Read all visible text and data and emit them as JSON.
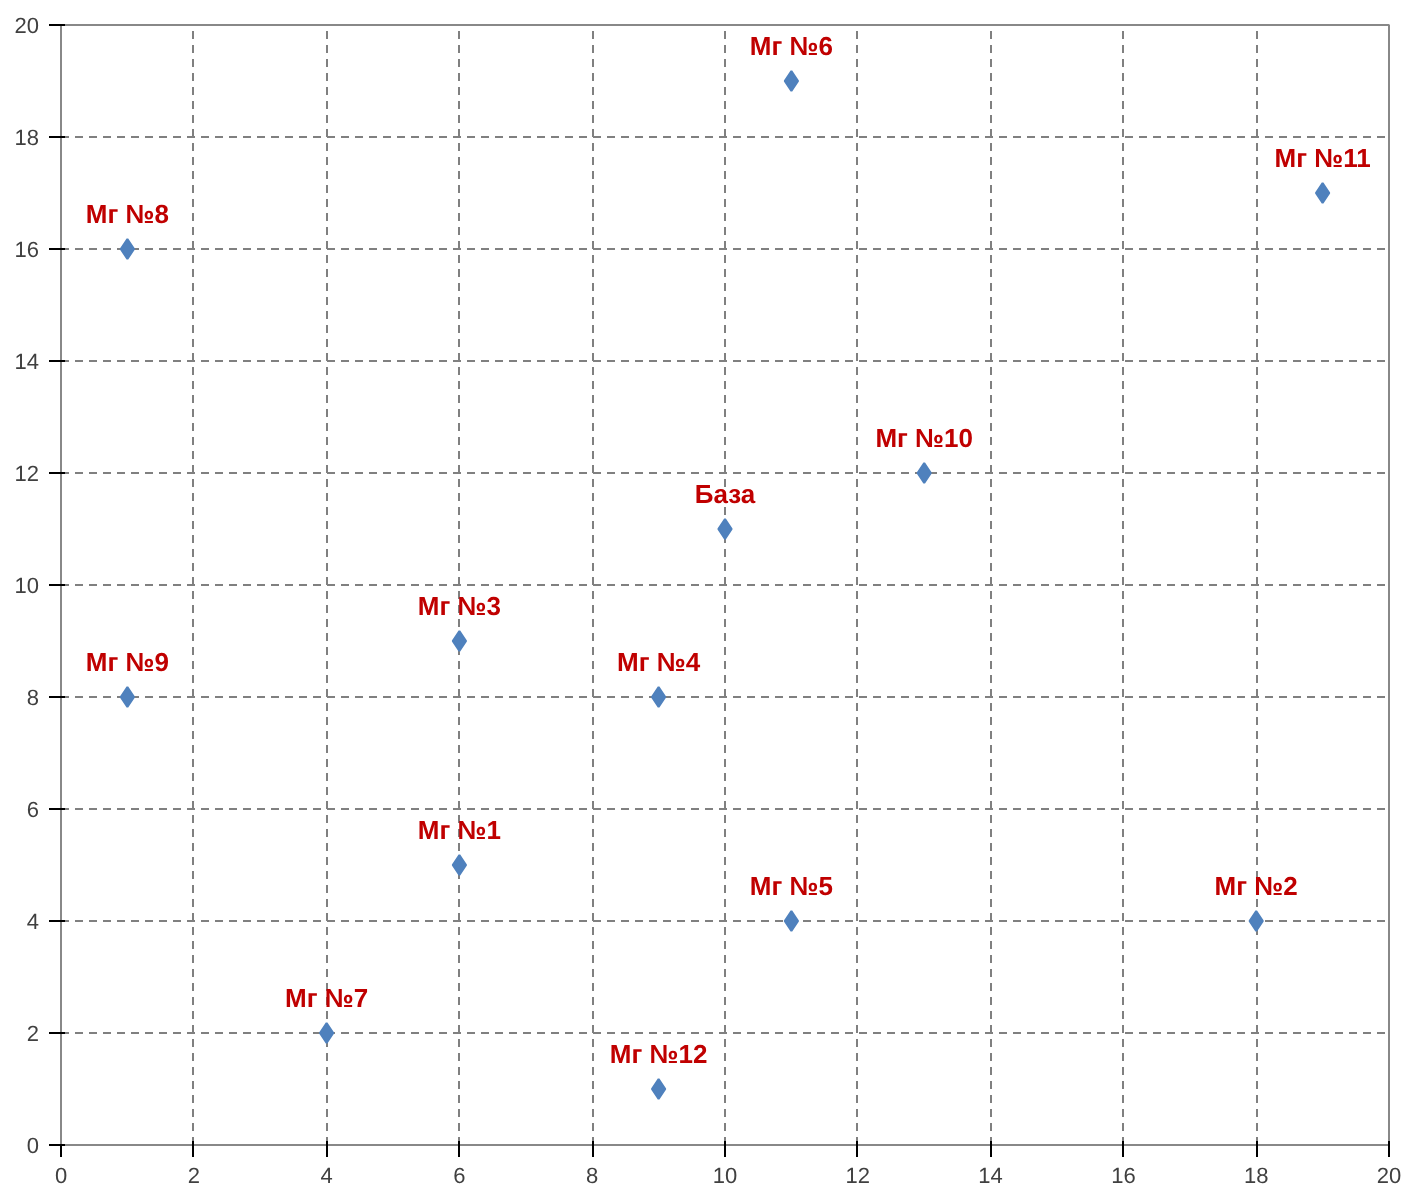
{
  "chart_data": {
    "type": "scatter",
    "marker": "diamond",
    "grid": true,
    "xlim": [
      0,
      20
    ],
    "ylim": [
      0,
      20
    ],
    "xticks": [
      0,
      2,
      4,
      6,
      8,
      10,
      12,
      14,
      16,
      18,
      20
    ],
    "yticks": [
      0,
      2,
      4,
      6,
      8,
      10,
      12,
      14,
      16,
      18,
      20
    ],
    "series": [
      {
        "color": "#4f81bd",
        "x": [
          1,
          11,
          19,
          13,
          10,
          6,
          1,
          9,
          6,
          11,
          18,
          4,
          9
        ],
        "values": [
          16,
          19,
          17,
          12,
          11,
          9,
          8,
          8,
          5,
          4,
          4,
          2,
          1
        ]
      }
    ],
    "annotations": [
      {
        "text": "Мг №8",
        "x": 1,
        "y": 16
      },
      {
        "text": "Мг №6",
        "x": 11,
        "y": 19
      },
      {
        "text": "Мг №11",
        "x": 19,
        "y": 17
      },
      {
        "text": "Мг №10",
        "x": 13,
        "y": 12
      },
      {
        "text": "База",
        "x": 10,
        "y": 11
      },
      {
        "text": "Мг №3",
        "x": 6,
        "y": 9
      },
      {
        "text": "Мг №9",
        "x": 1,
        "y": 8
      },
      {
        "text": "Мг №4",
        "x": 9,
        "y": 8
      },
      {
        "text": "Мг №1",
        "x": 6,
        "y": 5
      },
      {
        "text": "Мг №5",
        "x": 11,
        "y": 4
      },
      {
        "text": "Мг №2",
        "x": 18,
        "y": 4
      },
      {
        "text": "Мг №7",
        "x": 4,
        "y": 2
      },
      {
        "text": "Мг №12",
        "x": 9,
        "y": 1
      }
    ]
  }
}
